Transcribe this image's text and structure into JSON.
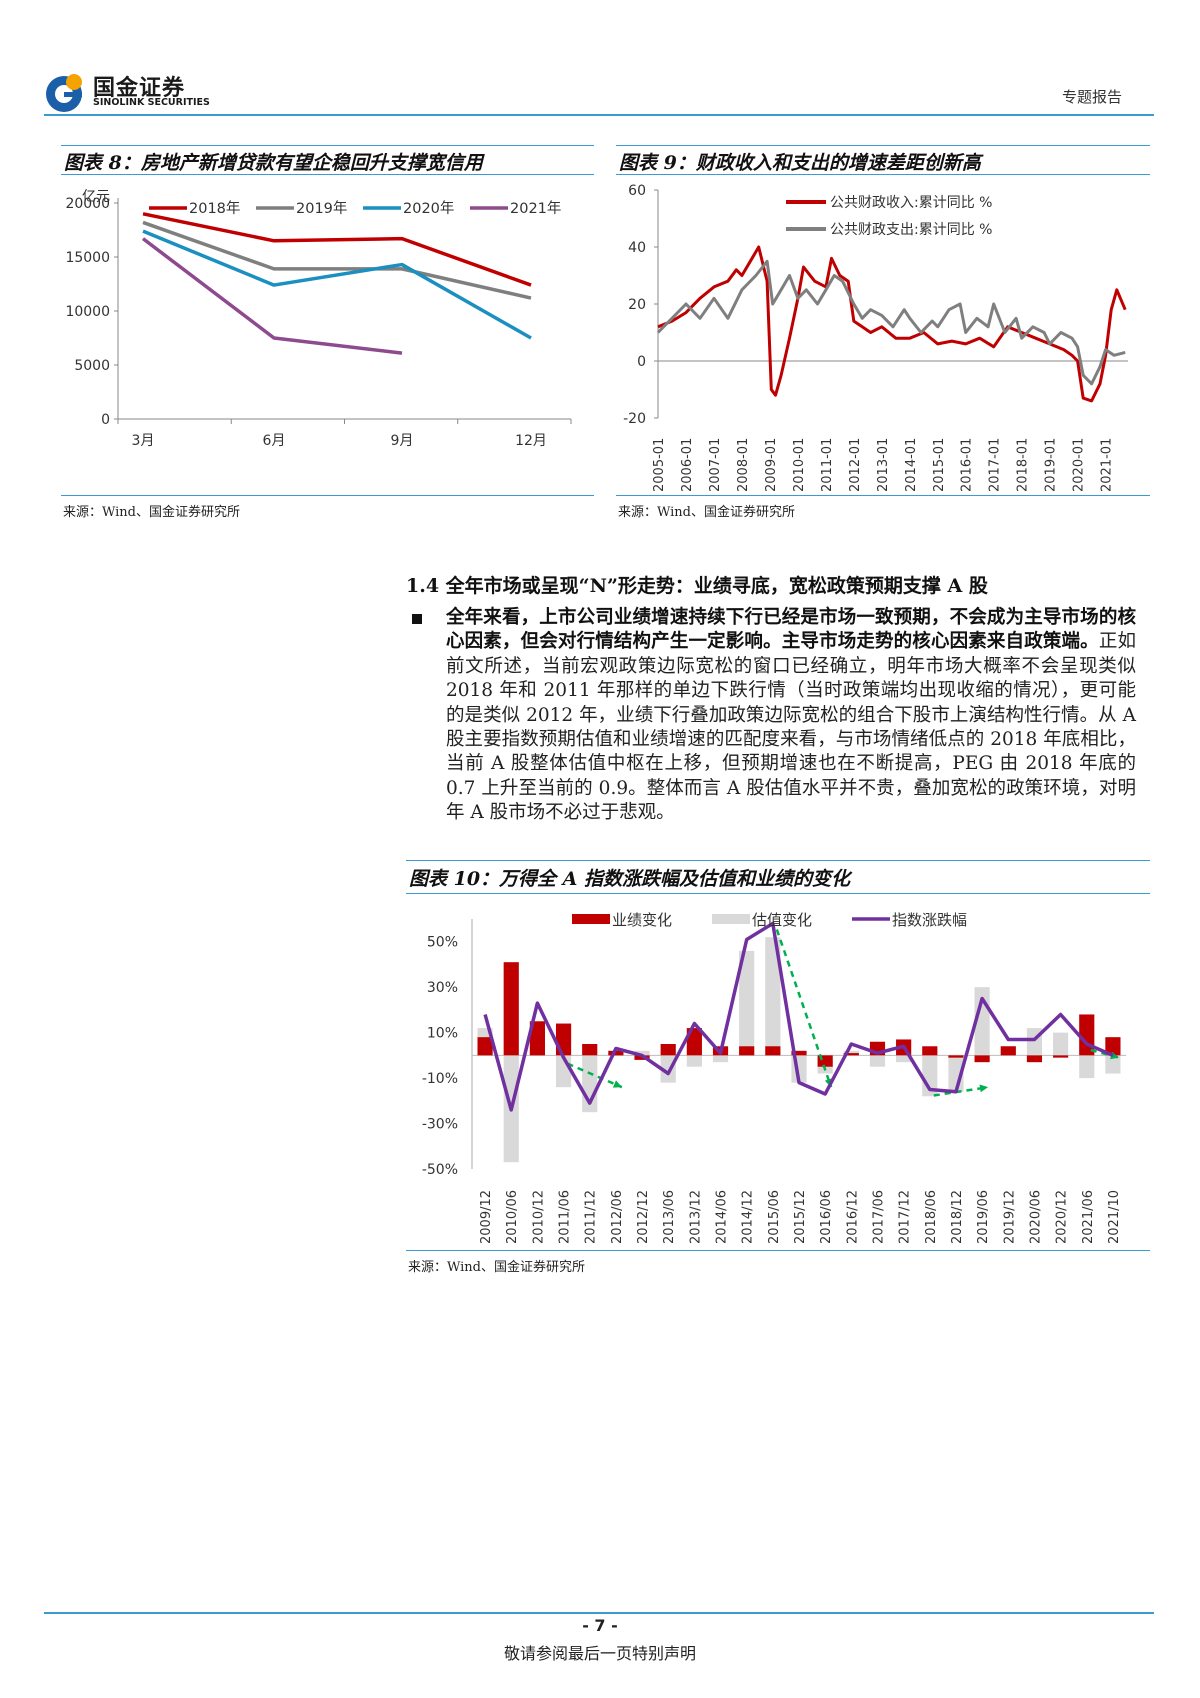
{
  "header": {
    "company_cn": "国金证券",
    "company_en": "SINOLINK SECURITIES",
    "report_type": "专题报告"
  },
  "colors": {
    "accent": "#3a9bd0",
    "red": "#c00000",
    "gray": "#7f7f7f",
    "blue": "#1b8fc0",
    "purple": "#8e4a8e",
    "violet": "#7030a0",
    "lightgray": "#d9d9d9",
    "green": "#00b050"
  },
  "figure8": {
    "caption": "图表 8：房地产新增贷款有望企稳回升支撑宽信用",
    "source": "来源：Wind、国金证券研究所",
    "chart_data": {
      "type": "line",
      "ylabel": "亿元",
      "categories": [
        "3月",
        "6月",
        "9月",
        "12月"
      ],
      "ylim": [
        0,
        20000
      ],
      "yticks": [
        0,
        5000,
        10000,
        15000,
        20000
      ],
      "series": [
        {
          "name": "2018年",
          "color": "#c00000",
          "values": [
            19000,
            16500,
            16700,
            12400
          ]
        },
        {
          "name": "2019年",
          "color": "#7f7f7f",
          "values": [
            18200,
            13900,
            13900,
            11200
          ]
        },
        {
          "name": "2020年",
          "color": "#1b8fc0",
          "values": [
            17400,
            12400,
            14300,
            7500
          ]
        },
        {
          "name": "2021年",
          "color": "#8e4a8e",
          "values": [
            16700,
            7500,
            6100,
            null
          ]
        }
      ]
    }
  },
  "figure9": {
    "caption": "图表 9：财政收入和支出的增速差距创新高",
    "source": "来源：Wind、国金证券研究所",
    "chart_data": {
      "type": "line",
      "ylim": [
        -20,
        60
      ],
      "yticks": [
        -20,
        0,
        20,
        40,
        60
      ],
      "x_tick_labels": [
        "2005-01",
        "2006-01",
        "2007-01",
        "2008-01",
        "2009-01",
        "2010-01",
        "2011-01",
        "2012-01",
        "2013-01",
        "2014-01",
        "2015-01",
        "2016-01",
        "2017-01",
        "2018-01",
        "2019-01",
        "2020-01",
        "2021-01"
      ],
      "x_range": [
        2005.0,
        2021.8
      ],
      "series": [
        {
          "name": "公共财政收入:累计同比 %",
          "color": "#c00000",
          "x": [
            2005.0,
            2005.5,
            2006.0,
            2006.5,
            2007.0,
            2007.5,
            2007.8,
            2008.0,
            2008.3,
            2008.6,
            2008.9,
            2009.05,
            2009.2,
            2009.4,
            2009.7,
            2010.0,
            2010.2,
            2010.6,
            2011.0,
            2011.2,
            2011.5,
            2011.8,
            2012.0,
            2012.3,
            2012.6,
            2013.0,
            2013.5,
            2014.0,
            2014.5,
            2015.0,
            2015.5,
            2016.0,
            2016.5,
            2017.0,
            2017.5,
            2018.0,
            2018.5,
            2019.0,
            2019.5,
            2019.8,
            2020.0,
            2020.2,
            2020.5,
            2020.8,
            2021.0,
            2021.2,
            2021.4,
            2021.7
          ],
          "values": [
            12,
            14,
            17,
            22,
            26,
            28,
            32,
            30,
            35,
            40,
            28,
            -10,
            -12,
            -5,
            8,
            22,
            33,
            28,
            26,
            36,
            30,
            28,
            14,
            12,
            10,
            12,
            8,
            8,
            10,
            6,
            7,
            6,
            8,
            5,
            12,
            10,
            8,
            6,
            4,
            2,
            0,
            -13,
            -14,
            -8,
            2,
            18,
            25,
            18
          ]
        },
        {
          "name": "公共财政支出:累计同比 %",
          "color": "#7f7f7f",
          "x": [
            2005.0,
            2005.5,
            2006.0,
            2006.5,
            2007.0,
            2007.5,
            2008.0,
            2008.5,
            2008.9,
            2009.1,
            2009.4,
            2009.7,
            2010.0,
            2010.3,
            2010.7,
            2011.0,
            2011.3,
            2011.6,
            2012.0,
            2012.3,
            2012.6,
            2013.0,
            2013.4,
            2013.8,
            2014.0,
            2014.4,
            2014.8,
            2015.0,
            2015.4,
            2015.8,
            2016.0,
            2016.4,
            2016.8,
            2017.0,
            2017.4,
            2017.8,
            2018.0,
            2018.4,
            2018.8,
            2019.0,
            2019.4,
            2019.8,
            2020.0,
            2020.2,
            2020.5,
            2020.8,
            2021.0,
            2021.3,
            2021.7
          ],
          "values": [
            10,
            15,
            20,
            15,
            22,
            15,
            25,
            30,
            35,
            20,
            25,
            30,
            22,
            25,
            20,
            25,
            30,
            28,
            20,
            15,
            18,
            16,
            12,
            18,
            15,
            10,
            14,
            12,
            18,
            20,
            10,
            15,
            12,
            20,
            10,
            15,
            8,
            12,
            10,
            6,
            10,
            8,
            5,
            -5,
            -8,
            -2,
            4,
            2,
            3
          ]
        }
      ]
    }
  },
  "section": {
    "heading": "1.4 全年市场或呈现“N”形走势：业绩寻底，宽松政策预期支撑 A 股",
    "bold_text": "全年来看，上市公司业绩增速持续下行已经是市场一致预期，不会成为主导市场的核心因素，但会对行情结构产生一定影响。主导市场走势的核心因素来自政策端。",
    "normal_text": "正如前文所述，当前宏观政策边际宽松的窗口已经确立，明年市场大概率不会呈现类似 2018 年和 2011 年那样的单边下跌行情（当时政策端均出现收缩的情况），更可能的是类似 2012 年，业绩下行叠加政策边际宽松的组合下股市上演结构性行情。从 A 股主要指数预期估值和业绩增速的匹配度来看，与市场情绪低点的 2018 年底相比，当前 A 股整体估值中枢在上移，但预期增速也在不断提高，PEG 由 2018 年底的 0.7 上升至当前的 0.9。整体而言 A 股估值水平并不贵，叠加宽松的政策环境，对明年 A 股市场不必过于悲观。"
  },
  "figure10": {
    "caption": "图表 10：万得全 A 指数涨跌幅及估值和业绩的变化",
    "source": "来源：Wind、国金证券研究所",
    "chart_data": {
      "type": "bar",
      "categories": [
        "2009/12",
        "2010/06",
        "2010/12",
        "2011/06",
        "2011/12",
        "2012/06",
        "2012/12",
        "2013/06",
        "2013/12",
        "2014/06",
        "2014/12",
        "2015/06",
        "2015/12",
        "2016/06",
        "2016/12",
        "2017/06",
        "2017/12",
        "2018/06",
        "2018/12",
        "2019/06",
        "2019/12",
        "2020/06",
        "2020/12",
        "2021/06",
        "2021/10"
      ],
      "ylim": [
        -50,
        60
      ],
      "yticks": [
        -50,
        -30,
        -10,
        10,
        30,
        50
      ],
      "ytick_labels": [
        "-50%",
        "-30%",
        "-10%",
        "10%",
        "30%",
        "50%"
      ],
      "series": [
        {
          "name": "业绩变化",
          "kind": "bar",
          "color": "#c00000",
          "values": [
            8,
            41,
            15,
            14,
            5,
            2,
            -2,
            5,
            12,
            4,
            4,
            4,
            2,
            -5,
            1,
            6,
            7,
            4,
            -1,
            -3,
            4,
            -3,
            -1,
            18,
            8
          ]
        },
        {
          "name": "估值变化",
          "kind": "bar",
          "color": "#d9d9d9",
          "values": [
            12,
            -47,
            10,
            -14,
            -25,
            1,
            2,
            -12,
            -5,
            -3,
            46,
            52,
            -12,
            -8,
            2,
            -5,
            -3,
            -18,
            -16,
            30,
            4,
            12,
            10,
            -10,
            -8
          ]
        },
        {
          "name": "指数涨跌幅",
          "kind": "line",
          "color": "#7030a0",
          "values": [
            18,
            -24,
            23,
            -1,
            -21,
            3,
            0,
            -8,
            14,
            1,
            51,
            58,
            -12,
            -17,
            5,
            1,
            4,
            -15,
            -16,
            25,
            7,
            7,
            18,
            5,
            0
          ]
        }
      ],
      "trend_arrows": [
        [
          3,
          5
        ],
        [
          11,
          13
        ],
        [
          17,
          19
        ],
        [
          23,
          24
        ]
      ]
    }
  },
  "footer": {
    "page_number": "- 7 -",
    "disclaimer": "敬请参阅最后一页特别声明"
  }
}
